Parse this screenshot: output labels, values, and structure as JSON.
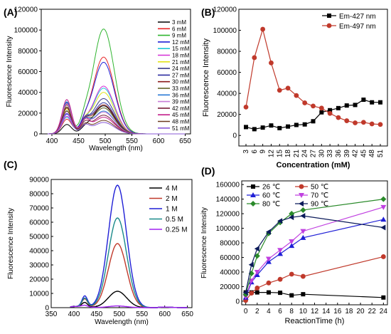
{
  "chart_data": [
    {
      "panel": "(A)",
      "type": "line",
      "xlabel": "Wavelength (nm)",
      "ylabel": "Fluorescence Intensity",
      "xlim": [
        380,
        660
      ],
      "ylim": [
        0,
        120000
      ],
      "xticks": [
        400,
        450,
        500,
        550,
        600,
        650
      ],
      "yticks": [
        0,
        20000,
        40000,
        60000,
        80000,
        100000,
        120000
      ],
      "legend_position": "right",
      "series": [
        {
          "name": "3 mM",
          "color": "#000000",
          "p1": 9000,
          "p2": 27000
        },
        {
          "name": "6 mM",
          "color": "#e8272a",
          "p1": 14000,
          "p2": 74000
        },
        {
          "name": "9 mM",
          "color": "#2fb52f",
          "p1": 22000,
          "p2": 101000
        },
        {
          "name": "12 mM",
          "color": "#1f1fd6",
          "p1": 19000,
          "p2": 69000
        },
        {
          "name": "15 mM",
          "color": "#20c7d6",
          "p1": 16000,
          "p2": 44000
        },
        {
          "name": "18 mM",
          "color": "#d42fd6",
          "p1": 17000,
          "p2": 46000
        },
        {
          "name": "21 mM",
          "color": "#e2e21a",
          "p1": 24000,
          "p2": 40000
        },
        {
          "name": "24 mM",
          "color": "#3d3d8a",
          "p1": 22000,
          "p2": 34000
        },
        {
          "name": "27 mM",
          "color": "#2e2ea0",
          "p1": 30000,
          "p2": 30000
        },
        {
          "name": "30 mM",
          "color": "#8b1a1a",
          "p1": 28000,
          "p2": 28000
        },
        {
          "name": "33 mM",
          "color": "#5a5a1a",
          "p1": 26000,
          "p2": 25000
        },
        {
          "name": "36 mM",
          "color": "#2a7ad6",
          "p1": 31000,
          "p2": 22000
        },
        {
          "name": "39 mM",
          "color": "#c87dd6",
          "p1": 29000,
          "p2": 21000
        },
        {
          "name": "42 mM",
          "color": "#7a1f3a",
          "p1": 25000,
          "p2": 18000
        },
        {
          "name": "45 mM",
          "color": "#c21f8a",
          "p1": 33000,
          "p2": 16000
        },
        {
          "name": "48 mM",
          "color": "#6b3a1f",
          "p1": 22000,
          "p2": 13000
        },
        {
          "name": "51 mM",
          "color": "#8a5ad6",
          "p1": 20000,
          "p2": 11000
        }
      ]
    },
    {
      "panel": "(B)",
      "type": "line",
      "xlabel": "Concentration (mM)",
      "ylabel": "Fluorescence Intensity",
      "ylim": [
        -10000,
        120000
      ],
      "yticks": [
        0,
        20000,
        40000,
        60000,
        80000,
        100000,
        120000
      ],
      "categories": [
        "3",
        "6",
        "9",
        "12",
        "15",
        "18",
        "21",
        "24",
        "27",
        "30",
        "33",
        "36",
        "39",
        "42",
        "45",
        "48",
        "51"
      ],
      "legend_position": "top-right",
      "series": [
        {
          "name": "Em-427 nm",
          "color": "#000000",
          "marker": "square",
          "values": [
            8000,
            6000,
            7500,
            9500,
            7000,
            8500,
            10000,
            10500,
            13500,
            22000,
            24000,
            26000,
            28500,
            29000,
            34000,
            31500,
            31500
          ]
        },
        {
          "name": "Em-497 nm",
          "color": "#c0392b",
          "marker": "circle",
          "values": [
            27000,
            74000,
            101000,
            69000,
            43000,
            45000,
            38000,
            31000,
            28000,
            26000,
            21000,
            17000,
            14000,
            12000,
            12500,
            11000,
            10500
          ]
        }
      ]
    },
    {
      "panel": "(C)",
      "type": "line",
      "xlabel": "Wavelength (nm)",
      "ylabel": "Fluorescence Intensity",
      "xlim": [
        350,
        660
      ],
      "ylim": [
        0,
        90000
      ],
      "xticks": [
        350,
        400,
        450,
        500,
        550,
        600,
        650
      ],
      "yticks": [
        0,
        10000,
        20000,
        30000,
        40000,
        50000,
        60000,
        70000,
        80000,
        90000
      ],
      "legend_position": "top-right",
      "series": [
        {
          "name": "4 M",
          "color": "#000000",
          "p1": 3000,
          "p2": 11500
        },
        {
          "name": "2 M",
          "color": "#c0392b",
          "p1": 5500,
          "p2": 45000
        },
        {
          "name": "1 M",
          "color": "#1f1fd6",
          "p1": 7500,
          "p2": 86000
        },
        {
          "name": "0.5 M",
          "color": "#1b8a8a",
          "p1": 6000,
          "p2": 63000
        },
        {
          "name": "0.25 M",
          "color": "#a020f0",
          "p1": 1000,
          "p2": 1200
        }
      ]
    },
    {
      "panel": "(D)",
      "type": "line",
      "xlabel": "ReactionTime (h)",
      "ylabel": "Fluorescence Intensity",
      "xlim": [
        -0.7,
        24.7
      ],
      "ylim": [
        -5000,
        165000
      ],
      "xticks": [
        0,
        2,
        4,
        6,
        8,
        10,
        12,
        14,
        16,
        18,
        20,
        22,
        24
      ],
      "yticks": [
        0,
        20000,
        40000,
        60000,
        80000,
        100000,
        120000,
        140000,
        160000
      ],
      "legend_position": "top-left",
      "x": [
        0,
        1,
        2,
        4,
        6,
        8,
        10,
        24
      ],
      "series": [
        {
          "name": "26 ℃",
          "color": "#000000",
          "marker": "square",
          "values": [
            12000,
            12000,
            12000,
            12000,
            11500,
            8000,
            9500,
            5000
          ]
        },
        {
          "name": "50 ℃",
          "color": "#c0392b",
          "marker": "circle",
          "values": [
            1000,
            11000,
            18000,
            25000,
            30000,
            37000,
            34000,
            61000
          ]
        },
        {
          "name": "60 ℃",
          "color": "#1f1fd6",
          "marker": "triangle",
          "values": [
            5000,
            26000,
            36000,
            54000,
            65000,
            76000,
            87000,
            112000
          ]
        },
        {
          "name": "70 ℃",
          "color": "#c040e0",
          "marker": "triangle-down",
          "values": [
            6000,
            28000,
            40000,
            58000,
            70000,
            82000,
            96000,
            129000
          ]
        },
        {
          "name": "80 ℃",
          "color": "#2a8a2a",
          "marker": "diamond",
          "values": [
            9000,
            38000,
            62000,
            93000,
            108000,
            120000,
            125000,
            140000
          ]
        },
        {
          "name": "90 ℃",
          "color": "#0b1a5a",
          "marker": "triangle-left",
          "values": [
            12000,
            50000,
            72000,
            95000,
            110000,
            115000,
            117000,
            101000
          ]
        }
      ]
    }
  ]
}
